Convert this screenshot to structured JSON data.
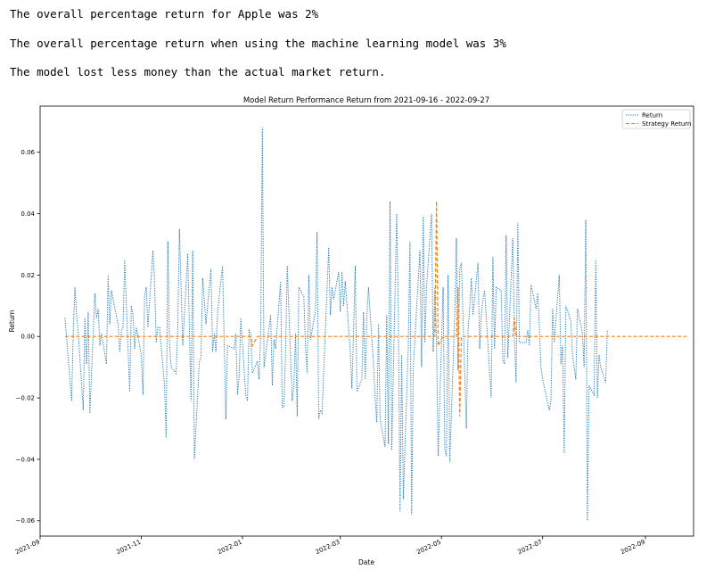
{
  "output": {
    "line1": "The overall percentage return for Apple was 2%",
    "line2": "The overall percentage return when using the machine learning model was 3%",
    "line3": "The model lost less money than the actual market return."
  },
  "chart_data": {
    "type": "line",
    "title": "Model Return Performance Return from 2021-09-16 - 2022-09-27",
    "xlabel": "Date",
    "ylabel": "Return",
    "xlim": [
      "2021-09-01",
      "2022-09-30"
    ],
    "ylim": [
      -0.065,
      0.075
    ],
    "x_ticks": [
      "2021-09",
      "2021-11",
      "2022-01",
      "2022-03",
      "2022-05",
      "2022-07",
      "2022-09"
    ],
    "y_ticks": [
      "-0.06",
      "-0.04",
      "-0.02",
      "0.00",
      "0.02",
      "0.04",
      "0.06"
    ],
    "y_tick_values": [
      -0.06,
      -0.04,
      -0.02,
      0.0,
      0.02,
      0.04,
      0.06
    ],
    "legend_position": "top-right",
    "grid": false,
    "series": [
      {
        "name": "Return",
        "color": "#1f77b4",
        "style": "dotted",
        "points": [
          [
            "2021-09-16",
            0.006
          ],
          [
            "2021-09-20",
            -0.021
          ],
          [
            "2021-09-21",
            0.002
          ],
          [
            "2021-09-22",
            0.016
          ],
          [
            "2021-09-23",
            0.007
          ],
          [
            "2021-09-24",
            0.001
          ],
          [
            "2021-09-27",
            -0.024
          ],
          [
            "2021-09-28",
            0.006
          ],
          [
            "2021-09-29",
            -0.009
          ],
          [
            "2021-09-30",
            0.008
          ],
          [
            "2021-10-01",
            -0.025
          ],
          [
            "2021-10-04",
            0.014
          ],
          [
            "2021-10-05",
            0.006
          ],
          [
            "2021-10-06",
            0.009
          ],
          [
            "2021-10-07",
            -0.003
          ],
          [
            "2021-10-08",
            0.001
          ],
          [
            "2021-10-11",
            -0.009
          ],
          [
            "2021-10-12",
            0.02
          ],
          [
            "2021-10-13",
            0.004
          ],
          [
            "2021-10-14",
            0.015
          ],
          [
            "2021-10-15",
            0.012
          ],
          [
            "2021-10-18",
            0.004
          ],
          [
            "2021-10-19",
            -0.005
          ],
          [
            "2021-10-20",
            0.002
          ],
          [
            "2021-10-21",
            0.003
          ],
          [
            "2021-10-22",
            0.025
          ],
          [
            "2021-10-25",
            -0.018
          ],
          [
            "2021-10-26",
            0.01
          ],
          [
            "2021-10-27",
            0.007
          ],
          [
            "2021-10-28",
            -0.004
          ],
          [
            "2021-10-29",
            0.003
          ],
          [
            "2021-11-01",
            -0.006
          ],
          [
            "2021-11-02",
            -0.019
          ],
          [
            "2021-11-03",
            0.013
          ],
          [
            "2021-11-04",
            0.016
          ],
          [
            "2021-11-05",
            0.003
          ],
          [
            "2021-11-08",
            0.028
          ],
          [
            "2021-11-09",
            0.018
          ],
          [
            "2021-11-10",
            -0.002
          ],
          [
            "2021-11-11",
            0.003
          ],
          [
            "2021-11-12",
            0.003
          ],
          [
            "2021-11-15",
            -0.016
          ],
          [
            "2021-11-16",
            -0.033
          ],
          [
            "2021-11-17",
            0.031
          ],
          [
            "2021-11-18",
            -0.002
          ],
          [
            "2021-11-19",
            -0.01
          ],
          [
            "2021-11-22",
            -0.012
          ],
          [
            "2021-11-23",
            0.003
          ],
          [
            "2021-11-24",
            0.035
          ],
          [
            "2021-11-26",
            -0.003
          ],
          [
            "2021-11-29",
            0.027
          ],
          [
            "2021-11-30",
            0.003
          ],
          [
            "2021-12-01",
            -0.021
          ],
          [
            "2021-12-02",
            0.028
          ],
          [
            "2021-12-03",
            -0.04
          ],
          [
            "2021-12-06",
            -0.008
          ],
          [
            "2021-12-07",
            -0.007
          ],
          [
            "2021-12-08",
            0.019
          ],
          [
            "2021-12-09",
            0.012
          ],
          [
            "2021-12-10",
            0.004
          ],
          [
            "2021-12-13",
            0.022
          ],
          [
            "2021-12-14",
            -0.005
          ],
          [
            "2021-12-15",
            0.001
          ],
          [
            "2021-12-16",
            -0.005
          ],
          [
            "2021-12-17",
            0.008
          ],
          [
            "2021-12-20",
            0.023
          ],
          [
            "2021-12-21",
            -0.002
          ],
          [
            "2021-12-22",
            -0.027
          ],
          [
            "2021-12-23",
            -0.003
          ],
          [
            "2021-12-27",
            -0.004
          ],
          [
            "2021-12-28",
            0.001
          ],
          [
            "2021-12-29",
            -0.019
          ],
          [
            "2021-12-30",
            -0.013
          ],
          [
            "2021-12-31",
            0.006
          ],
          [
            "2022-01-03",
            -0.019
          ],
          [
            "2022-01-04",
            -0.021
          ],
          [
            "2022-01-05",
            0.002
          ],
          [
            "2022-01-06",
            0.001
          ],
          [
            "2022-01-07",
            -0.012
          ],
          [
            "2022-01-10",
            -0.008
          ],
          [
            "2022-01-11",
            -0.014
          ],
          [
            "2022-01-12",
            0.001
          ],
          [
            "2022-01-13",
            0.068
          ],
          [
            "2022-01-14",
            -0.01
          ],
          [
            "2022-01-18",
            0.007
          ],
          [
            "2022-01-19",
            -0.016
          ],
          [
            "2022-01-20",
            -0.001
          ],
          [
            "2022-01-21",
            -0.004
          ],
          [
            "2022-01-24",
            0.018
          ],
          [
            "2022-01-25",
            -0.023
          ],
          [
            "2022-01-26",
            -0.023
          ],
          [
            "2022-01-27",
            -0.005
          ],
          [
            "2022-01-28",
            0.023
          ],
          [
            "2022-01-31",
            -0.021
          ],
          [
            "2022-02-01",
            -0.016
          ],
          [
            "2022-02-02",
            0.001
          ],
          [
            "2022-02-03",
            -0.026
          ],
          [
            "2022-02-04",
            0.016
          ],
          [
            "2022-02-07",
            0.013
          ],
          [
            "2022-02-08",
            -0.003
          ],
          [
            "2022-02-09",
            -0.012
          ],
          [
            "2022-02-10",
            0.02
          ],
          [
            "2022-02-11",
            -0.001
          ],
          [
            "2022-02-14",
            0.008
          ],
          [
            "2022-02-15",
            0.034
          ],
          [
            "2022-02-16",
            -0.027
          ],
          [
            "2022-02-17",
            -0.024
          ],
          [
            "2022-02-18",
            -0.025
          ],
          [
            "2022-02-22",
            0.029
          ],
          [
            "2022-02-23",
            0.007
          ],
          [
            "2022-02-24",
            0.016
          ],
          [
            "2022-02-25",
            0.012
          ],
          [
            "2022-02-28",
            0.021
          ],
          [
            "2022-03-01",
            0.008
          ],
          [
            "2022-03-02",
            0.021
          ],
          [
            "2022-03-03",
            0.01
          ],
          [
            "2022-03-04",
            0.018
          ],
          [
            "2022-03-07",
            -0.005
          ],
          [
            "2022-03-08",
            -0.017
          ],
          [
            "2022-03-09",
            0.002
          ],
          [
            "2022-03-10",
            0.023
          ],
          [
            "2022-03-11",
            -0.018
          ],
          [
            "2022-03-14",
            -0.014
          ],
          [
            "2022-03-15",
            0.008
          ],
          [
            "2022-03-16",
            -0.014
          ],
          [
            "2022-03-17",
            0.006
          ],
          [
            "2022-03-18",
            0.016
          ],
          [
            "2022-03-21",
            -0.009
          ],
          [
            "2022-03-22",
            -0.02
          ],
          [
            "2022-03-23",
            -0.028
          ],
          [
            "2022-03-24",
            0.004
          ],
          [
            "2022-03-25",
            -0.027
          ],
          [
            "2022-03-28",
            -0.036
          ],
          [
            "2022-03-29",
            0.007
          ],
          [
            "2022-03-30",
            -0.035
          ],
          [
            "2022-03-31",
            0.044
          ],
          [
            "2022-04-01",
            -0.037
          ],
          [
            "2022-04-04",
            0.04
          ],
          [
            "2022-04-05",
            0.007
          ],
          [
            "2022-04-06",
            -0.057
          ],
          [
            "2022-04-07",
            -0.006
          ],
          [
            "2022-04-08",
            -0.053
          ],
          [
            "2022-04-11",
            -0.003
          ],
          [
            "2022-04-12",
            0.031
          ],
          [
            "2022-04-13",
            -0.058
          ],
          [
            "2022-04-14",
            -0.01
          ],
          [
            "2022-04-18",
            0.028
          ],
          [
            "2022-04-19",
            -0.01
          ],
          [
            "2022-04-20",
            0.039
          ],
          [
            "2022-04-21",
            -0.002
          ],
          [
            "2022-04-22",
            0.016
          ],
          [
            "2022-04-25",
            0.04
          ],
          [
            "2022-04-26",
            -0.005
          ],
          [
            "2022-04-27",
            0.016
          ],
          [
            "2022-04-28",
            -0.002
          ],
          [
            "2022-04-29",
            -0.039
          ],
          [
            "2022-05-02",
            0.016
          ],
          [
            "2022-05-03",
            -0.037
          ],
          [
            "2022-05-04",
            -0.039
          ],
          [
            "2022-05-05",
            0.02
          ],
          [
            "2022-05-06",
            -0.041
          ],
          [
            "2022-05-09",
            0.007
          ],
          [
            "2022-05-10",
            0.032
          ],
          [
            "2022-05-11",
            -0.011
          ],
          [
            "2022-05-12",
            0.022
          ],
          [
            "2022-05-13",
            0.024
          ],
          [
            "2022-05-16",
            -0.03
          ],
          [
            "2022-05-17",
            0.002
          ],
          [
            "2022-05-18",
            0.009
          ],
          [
            "2022-05-19",
            0.019
          ],
          [
            "2022-05-20",
            0.007
          ],
          [
            "2022-05-23",
            0.024
          ],
          [
            "2022-05-24",
            -0.004
          ],
          [
            "2022-05-25",
            0.007
          ],
          [
            "2022-05-26",
            0.012
          ],
          [
            "2022-05-27",
            0.015
          ],
          [
            "2022-05-31",
            -0.02
          ],
          [
            "2022-06-01",
            0.026
          ],
          [
            "2022-06-02",
            -0.004
          ],
          [
            "2022-06-03",
            0.016
          ],
          [
            "2022-06-06",
            0.015
          ],
          [
            "2022-06-07",
            -0.008
          ],
          [
            "2022-06-08",
            -0.009
          ],
          [
            "2022-06-09",
            0.033
          ],
          [
            "2022-06-10",
            -0.007
          ],
          [
            "2022-06-13",
            0.032
          ],
          [
            "2022-06-14",
            -0.001
          ],
          [
            "2022-06-15",
            -0.015
          ],
          [
            "2022-06-16",
            0.037
          ],
          [
            "2022-06-17",
            -0.002
          ],
          [
            "2022-06-21",
            -0.002
          ],
          [
            "2022-06-22",
            0.002
          ],
          [
            "2022-06-23",
            -0.003
          ],
          [
            "2022-06-24",
            0.017
          ],
          [
            "2022-06-27",
            0.009
          ],
          [
            "2022-06-28",
            0.014
          ],
          [
            "2022-06-29",
            0.003
          ],
          [
            "2022-06-30",
            -0.01
          ],
          [
            "2022-07-01",
            -0.014
          ],
          [
            "2022-07-05",
            -0.024
          ],
          [
            "2022-07-06",
            -0.021
          ],
          [
            "2022-07-07",
            0.009
          ],
          [
            "2022-07-08",
            -0.002
          ],
          [
            "2022-07-11",
            0.02
          ],
          [
            "2022-07-12",
            -0.009
          ],
          [
            "2022-07-13",
            -0.003
          ],
          [
            "2022-07-14",
            -0.038
          ],
          [
            "2022-07-15",
            0.01
          ],
          [
            "2022-07-18",
            0.005
          ],
          [
            "2022-07-19",
            -0.006
          ],
          [
            "2022-07-20",
            -0.01
          ],
          [
            "2022-07-21",
            -0.014
          ],
          [
            "2022-07-22",
            0.009
          ],
          [
            "2022-07-25",
            0.001
          ],
          [
            "2022-07-26",
            -0.01
          ],
          [
            "2022-07-27",
            0.038
          ],
          [
            "2022-07-28",
            -0.06
          ],
          [
            "2022-07-29",
            -0.016
          ],
          [
            "2022-08-01",
            -0.019
          ],
          [
            "2022-08-02",
            0.025
          ],
          [
            "2022-08-03",
            -0.02
          ],
          [
            "2022-08-04",
            -0.006
          ],
          [
            "2022-08-05",
            -0.01
          ],
          [
            "2022-08-08",
            -0.015
          ],
          [
            "2022-08-09",
            0.002
          ]
        ]
      },
      {
        "name": "Strategy Return",
        "color": "#ff7f0e",
        "style": "dashed",
        "points": [
          [
            "2021-09-16",
            0.0
          ],
          [
            "2022-01-06",
            0.0
          ],
          [
            "2022-01-07",
            -0.003
          ],
          [
            "2022-01-10",
            0.0
          ],
          [
            "2022-04-27",
            0.0
          ],
          [
            "2022-04-28",
            0.044
          ],
          [
            "2022-04-29",
            -0.003
          ],
          [
            "2022-05-02",
            0.0
          ],
          [
            "2022-05-10",
            0.0
          ],
          [
            "2022-05-11",
            0.016
          ],
          [
            "2022-05-12",
            -0.026
          ],
          [
            "2022-05-13",
            0.0
          ],
          [
            "2022-06-13",
            0.0
          ],
          [
            "2022-06-14",
            0.006
          ],
          [
            "2022-06-15",
            0.0
          ],
          [
            "2022-09-27",
            0.0
          ]
        ]
      }
    ]
  }
}
